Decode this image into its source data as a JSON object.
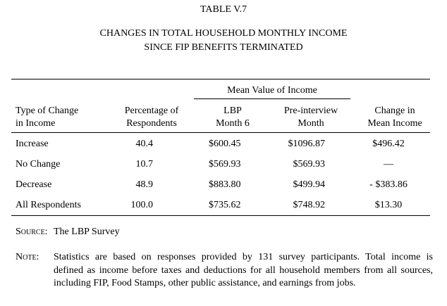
{
  "header": {
    "title": "TABLE V.7",
    "subtitle": [
      "CHANGES IN TOTAL HOUSEHOLD MONTHLY INCOME",
      "SINCE FIP BENEFITS TERMINATED"
    ]
  },
  "table": {
    "group_header": "Mean Value of Income",
    "columns": [
      [
        "Type of Change",
        "in Income"
      ],
      [
        "Percentage of",
        "Respondents"
      ],
      [
        "LBP",
        "Month 6"
      ],
      [
        "Pre-interview",
        "Month"
      ],
      [
        "Change in",
        "Mean Income"
      ]
    ],
    "rows": [
      [
        "Increase",
        "40.4",
        "$600.45",
        "$1096.87",
        "$496.42"
      ],
      [
        "No Change",
        "10.7",
        "$569.93",
        "$569.93",
        "—"
      ],
      [
        "Decrease",
        "48.9",
        "$883.80",
        "$499.94",
        "- $383.86"
      ],
      [
        "All Respondents",
        "100.0",
        "$735.62",
        "$748.92",
        "$13.30"
      ]
    ]
  },
  "source": {
    "label": "Source:",
    "text": "The LBP Survey"
  },
  "note": {
    "label": "Note:",
    "lines": [
      "Statistics are based on responses provided by 131 survey participants.  Total income is",
      "defined as income before taxes and deductions for all household members from all sources,",
      "including FIP, Food Stamps, other public assistance, and earnings from jobs."
    ]
  }
}
